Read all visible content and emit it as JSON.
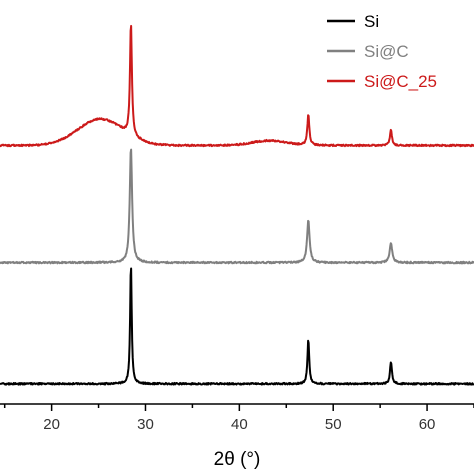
{
  "chart_data": {
    "type": "line",
    "title": "",
    "xlabel": "2θ (°)",
    "ylabel": "",
    "xlim": [
      14.5,
      65
    ],
    "ylim": [
      0,
      1
    ],
    "x_ticks": [
      20,
      30,
      40,
      50,
      60
    ],
    "x_tick_labels": [
      "20",
      "30",
      "40",
      "50",
      "60"
    ],
    "grid": false,
    "legend_position": "top-right",
    "series": [
      {
        "name": "Si",
        "color": "#000000",
        "baseline": 0.05,
        "hump": null,
        "peaks": [
          {
            "center": 28.45,
            "height": 0.3,
            "width": 0.1
          },
          {
            "center": 47.35,
            "height": 0.11,
            "width": 0.11
          },
          {
            "center": 56.15,
            "height": 0.055,
            "width": 0.12
          }
        ]
      },
      {
        "name": "Si@C",
        "color": "#808080",
        "baseline": 0.35,
        "hump": null,
        "peaks": [
          {
            "center": 28.45,
            "height": 0.285,
            "width": 0.15
          },
          {
            "center": 47.35,
            "height": 0.105,
            "width": 0.16
          },
          {
            "center": 56.15,
            "height": 0.048,
            "width": 0.16
          }
        ]
      },
      {
        "name": "Si@C_25",
        "color": "#cc1a1a",
        "baseline": 0.64,
        "hump": [
          {
            "center": 25.2,
            "height": 0.065,
            "width": 2.4
          },
          {
            "center": 43.2,
            "height": 0.012,
            "width": 1.8
          }
        ],
        "peaks": [
          {
            "center": 28.45,
            "height": 0.28,
            "width": 0.12
          },
          {
            "center": 47.35,
            "height": 0.075,
            "width": 0.13
          },
          {
            "center": 56.15,
            "height": 0.038,
            "width": 0.13
          }
        ]
      }
    ]
  }
}
